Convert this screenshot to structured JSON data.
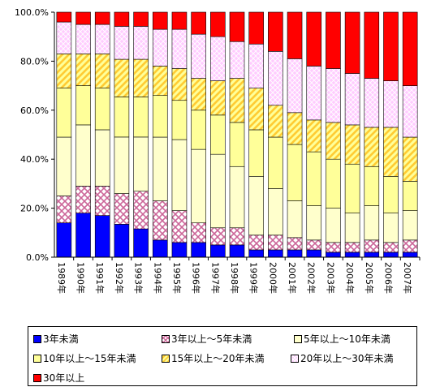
{
  "chart_data": {
    "type": "stacked-bar-100",
    "categories": [
      "1989年",
      "1990年",
      "1991年",
      "1992年",
      "1993年",
      "1994年",
      "1995年",
      "1996年",
      "1997年",
      "1998年",
      "1999年",
      "2000年",
      "2001年",
      "2002年",
      "2003年",
      "2004年",
      "2005年",
      "2006年",
      "2007年"
    ],
    "y_ticks": [
      "0.0%",
      "20.0%",
      "40.0%",
      "60.0%",
      "80.0%",
      "100.0%"
    ],
    "ylim": [
      0,
      100
    ],
    "legend_position": "bottom",
    "grid": false,
    "series": [
      {
        "name": "3年未満",
        "color": "#0000ff",
        "pattern": "solid",
        "values": [
          14,
          18,
          17,
          14,
          12,
          7,
          6,
          6,
          5,
          5,
          3,
          3,
          3,
          3,
          2,
          2,
          2,
          2,
          2
        ]
      },
      {
        "name": "3年以上～5年未満",
        "color": "#cc6699",
        "pattern": "crosshatch",
        "values": [
          11,
          11,
          12,
          13,
          16,
          16,
          13,
          8,
          7,
          7,
          6,
          6,
          5,
          4,
          4,
          4,
          5,
          4,
          5
        ]
      },
      {
        "name": "5年以上～10年未満",
        "color": "#ffffcc",
        "pattern": "solid",
        "values": [
          24,
          25,
          23,
          24,
          23,
          26,
          29,
          30,
          30,
          25,
          24,
          19,
          15,
          14,
          14,
          12,
          14,
          12,
          12
        ]
      },
      {
        "name": "10年以上～15年未満",
        "color": "#ffff99",
        "pattern": "solid",
        "values": [
          20,
          16,
          17,
          17,
          17,
          17,
          16,
          16,
          16,
          18,
          19,
          21,
          23,
          22,
          20,
          20,
          16,
          15,
          12
        ]
      },
      {
        "name": "15年以上～20年未満",
        "color": "#ffcc33",
        "pattern": "diagonal",
        "values": [
          14,
          13,
          14,
          16,
          16,
          12,
          13,
          13,
          14,
          18,
          17,
          13,
          13,
          13,
          15,
          16,
          16,
          20,
          18
        ]
      },
      {
        "name": "20年以上～30年未満",
        "color": "#ffccff",
        "pattern": "diamond",
        "values": [
          13,
          12,
          12,
          14,
          14,
          15,
          16,
          18,
          18,
          15,
          18,
          22,
          22,
          22,
          22,
          21,
          20,
          19,
          21
        ]
      },
      {
        "name": "30年以上",
        "color": "#ff0000",
        "pattern": "solid",
        "values": [
          4,
          5,
          5,
          6,
          6,
          7,
          7,
          9,
          10,
          12,
          13,
          16,
          19,
          22,
          23,
          25,
          27,
          28,
          30
        ]
      }
    ]
  }
}
